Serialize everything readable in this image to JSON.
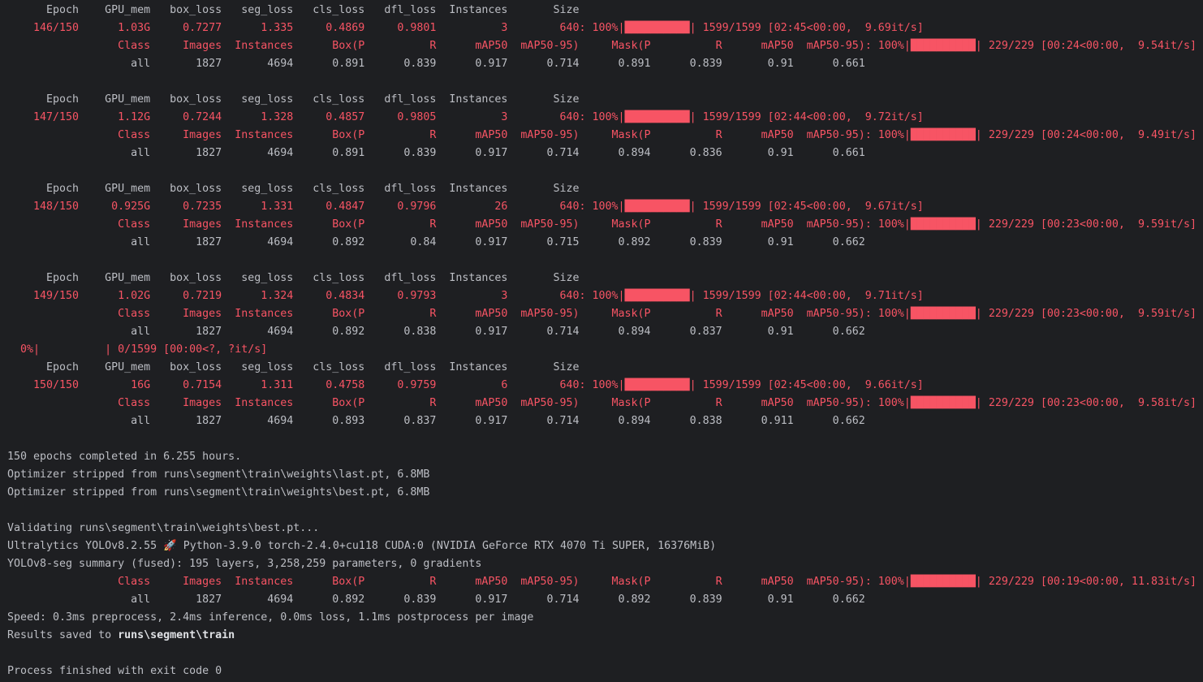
{
  "epochs": [
    {
      "header": "      Epoch    GPU_mem   box_loss   seg_loss   cls_loss   dfl_loss  Instances       Size",
      "train": "    146/150      1.03G     0.7277      1.335     0.4869     0.9801          3        640: 100%|██████████| 1599/1599 [02:45<00:00,  9.69it/s]",
      "val_header": "                 Class     Images  Instances      Box(P          R      mAP50  mAP50-95)     Mask(P          R      mAP50  mAP50-95): 100%|██████████| 229/229 [00:24<00:00,  9.54it/s]",
      "val_all": "                   all       1827       4694      0.891      0.839      0.917      0.714      0.891      0.839       0.91      0.661"
    },
    {
      "header": "      Epoch    GPU_mem   box_loss   seg_loss   cls_loss   dfl_loss  Instances       Size",
      "train": "    147/150      1.12G     0.7244      1.328     0.4857     0.9805          3        640: 100%|██████████| 1599/1599 [02:44<00:00,  9.72it/s]",
      "val_header": "                 Class     Images  Instances      Box(P          R      mAP50  mAP50-95)     Mask(P          R      mAP50  mAP50-95): 100%|██████████| 229/229 [00:24<00:00,  9.49it/s]",
      "val_all": "                   all       1827       4694      0.891      0.839      0.917      0.714      0.894      0.836       0.91      0.661"
    },
    {
      "header": "      Epoch    GPU_mem   box_loss   seg_loss   cls_loss   dfl_loss  Instances       Size",
      "train": "    148/150     0.925G     0.7235      1.331     0.4847     0.9796         26        640: 100%|██████████| 1599/1599 [02:45<00:00,  9.67it/s]",
      "val_header": "                 Class     Images  Instances      Box(P          R      mAP50  mAP50-95)     Mask(P          R      mAP50  mAP50-95): 100%|██████████| 229/229 [00:23<00:00,  9.59it/s]",
      "val_all": "                   all       1827       4694      0.892       0.84      0.917      0.715      0.892      0.839       0.91      0.662"
    },
    {
      "header": "      Epoch    GPU_mem   box_loss   seg_loss   cls_loss   dfl_loss  Instances       Size",
      "train": "    149/150      1.02G     0.7219      1.324     0.4834     0.9793          3        640: 100%|██████████| 1599/1599 [02:44<00:00,  9.71it/s]",
      "val_header": "                 Class     Images  Instances      Box(P          R      mAP50  mAP50-95)     Mask(P          R      mAP50  mAP50-95): 100%|██████████| 229/229 [00:23<00:00,  9.59it/s]",
      "val_all": "                   all       1827       4694      0.892      0.838      0.917      0.714      0.894      0.837       0.91      0.662"
    },
    {
      "header": "      Epoch    GPU_mem   box_loss   seg_loss   cls_loss   dfl_loss  Instances       Size",
      "train": "    150/150        16G     0.7154      1.311     0.4758     0.9759          6        640: 100%|██████████| 1599/1599 [02:45<00:00,  9.66it/s]",
      "val_header": "                 Class     Images  Instances      Box(P          R      mAP50  mAP50-95)     Mask(P          R      mAP50  mAP50-95): 100%|██████████| 229/229 [00:23<00:00,  9.58it/s]",
      "val_all": "                   all       1827       4694      0.893      0.837      0.917      0.714      0.894      0.838      0.911      0.662"
    }
  ],
  "interrupt": "  0%|          | 0/1599 [00:00<?, ?it/s]",
  "summary": [
    "150 epochs completed in 6.255 hours.",
    "Optimizer stripped from runs\\segment\\train\\weights\\last.pt, 6.8MB",
    "Optimizer stripped from runs\\segment\\train\\weights\\best.pt, 6.8MB"
  ],
  "validation": {
    "lines": [
      "Validating runs\\segment\\train\\weights\\best.pt...",
      "Ultralytics YOLOv8.2.55 🚀 Python-3.9.0 torch-2.4.0+cu118 CUDA:0 (NVIDIA GeForce RTX 4070 Ti SUPER, 16376MiB)",
      "YOLOv8-seg summary (fused): 195 layers, 3,258,259 parameters, 0 gradients"
    ],
    "val_header": "                 Class     Images  Instances      Box(P          R      mAP50  mAP50-95)     Mask(P          R      mAP50  mAP50-95): 100%|██████████| 229/229 [00:19<00:00, 11.83it/s]",
    "val_all": "                   all       1827       4694      0.892      0.839      0.917      0.714      0.892      0.839       0.91      0.662",
    "speed": "Speed: 0.3ms preprocess, 2.4ms inference, 0.0ms loss, 1.1ms postprocess per image",
    "results": {
      "text": "Results saved to",
      "path": "runs\\segment\\train"
    }
  },
  "exit": "Process finished with exit code 0"
}
